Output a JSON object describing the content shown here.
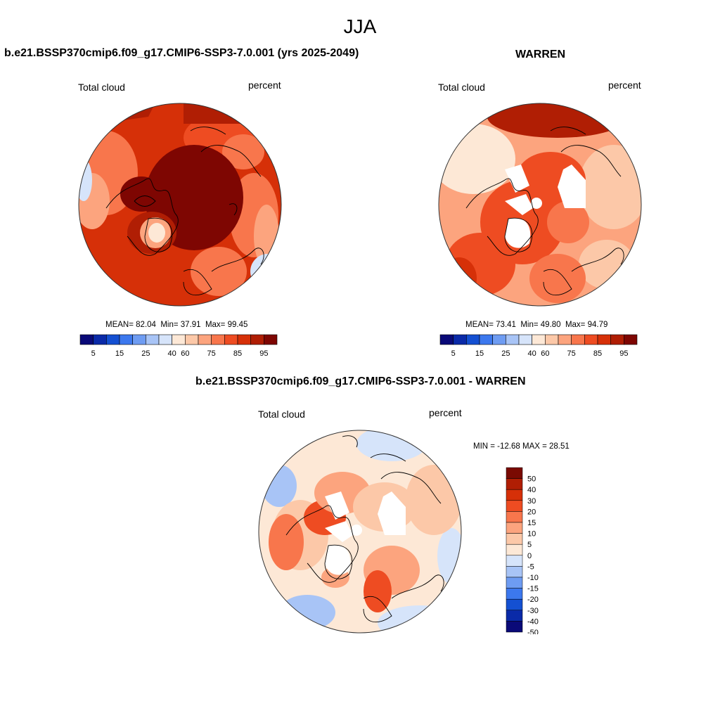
{
  "figure": {
    "season": "JJA"
  },
  "panels": [
    {
      "title": "b.e21.BSSP370cmip6.f09_g17.CMIP6-SSP3-7.0.001 (yrs 2025-2049)",
      "variable": "Total cloud",
      "units": "percent",
      "stats": {
        "mean_label": "MEAN=",
        "mean": "82.04",
        "min_label": "Min=",
        "min": "37.91",
        "max_label": "Max=",
        "max": "99.45"
      }
    },
    {
      "title": "WARREN",
      "variable": "Total cloud",
      "units": "percent",
      "stats": {
        "mean_label": "MEAN=",
        "mean": "73.41",
        "min_label": "Min=",
        "min": "49.80",
        "max_label": "Max=",
        "max": "94.79"
      }
    },
    {
      "title": "b.e21.BSSP370cmip6.f09_g17.CMIP6-SSP3-7.0.001 - WARREN",
      "variable": "Total cloud",
      "units": "percent",
      "range_text": "MIN = -12.68 MAX =  28.51"
    }
  ],
  "colorbars": {
    "absolute": {
      "colors": [
        "#0a0a78",
        "#0a2aa8",
        "#1450d2",
        "#3c78ee",
        "#6e9cf2",
        "#a8c4f6",
        "#d6e4fa",
        "#fde8d6",
        "#fcc8a8",
        "#fca47e",
        "#f8764c",
        "#ee4c22",
        "#d63008",
        "#b01e04",
        "#7e0602"
      ],
      "tick_labels": [
        "5",
        "15",
        "25",
        "40",
        "60",
        "75",
        "85",
        "95"
      ]
    },
    "difference": {
      "colors": [
        "#7a0a02",
        "#b01e04",
        "#d63008",
        "#ee4c22",
        "#f8764c",
        "#fca47e",
        "#fcc8a8",
        "#fde8d6",
        "#d6e4fa",
        "#a8c4f6",
        "#6e9cf2",
        "#3c78ee",
        "#1450d2",
        "#0a2aa8",
        "#0a0a78"
      ],
      "tick_labels": [
        "50",
        "40",
        "30",
        "20",
        "15",
        "10",
        "5",
        "0",
        "-5",
        "-10",
        "-15",
        "-20",
        "-30",
        "-40",
        "-50"
      ]
    }
  }
}
